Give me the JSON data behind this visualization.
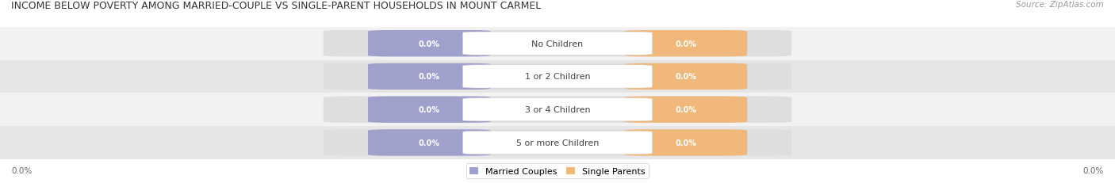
{
  "title": "INCOME BELOW POVERTY AMONG MARRIED-COUPLE VS SINGLE-PARENT HOUSEHOLDS IN MOUNT CARMEL",
  "source": "Source: ZipAtlas.com",
  "categories": [
    "No Children",
    "1 or 2 Children",
    "3 or 4 Children",
    "5 or more Children"
  ],
  "married_values": [
    0.0,
    0.0,
    0.0,
    0.0
  ],
  "single_values": [
    0.0,
    0.0,
    0.0,
    0.0
  ],
  "married_color": "#a0a0cc",
  "single_color": "#f0b87a",
  "row_bg_light": "#f2f2f2",
  "row_bg_dark": "#e6e6e6",
  "title_fontsize": 9.0,
  "source_fontsize": 7.5,
  "value_fontsize": 7.0,
  "category_fontsize": 8.0,
  "axis_tick_fontsize": 7.5,
  "legend_fontsize": 8.0,
  "value_label_color": "#ffffff",
  "category_label_color": "#444444",
  "axis_label": "0.0%",
  "figsize": [
    14.06,
    2.32
  ],
  "dpi": 100
}
